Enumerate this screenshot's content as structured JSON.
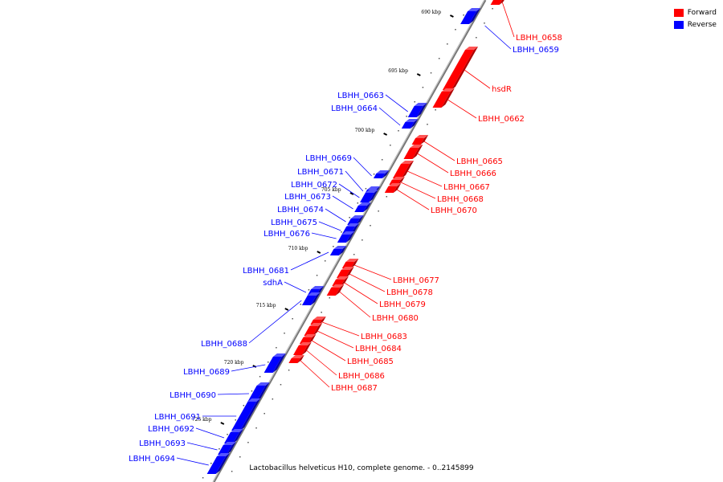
{
  "legend": [
    {
      "label": "Forward",
      "color": "#ff0000"
    },
    {
      "label": "Reverse",
      "color": "#0000ff"
    }
  ],
  "caption": "Lactobacillus helveticus H10, complete genome. - 0..2145899",
  "ticks": [
    "690 kbp",
    "695 kbp",
    "700 kbp",
    "705 kbp",
    "710 kbp",
    "715 kbp",
    "720 kbp",
    "725 kbp"
  ],
  "forward_genes": [
    "LBHH_0658",
    "hsdR",
    "LBHH_0662",
    "LBHH_0665",
    "LBHH_0666",
    "LBHH_0667",
    "LBHH_0668",
    "LBHH_0670",
    "LBHH_0677",
    "LBHH_0678",
    "LBHH_0679",
    "LBHH_0680",
    "LBHH_0683",
    "LBHH_0684",
    "LBHH_0685",
    "LBHH_0686",
    "LBHH_0687"
  ],
  "reverse_genes": [
    "LBHH_0659",
    "LBHH_0663",
    "LBHH_0664",
    "LBHH_0669",
    "LBHH_0671",
    "LBHH_0672",
    "LBHH_0673",
    "LBHH_0674",
    "LBHH_0675",
    "LBHH_0676",
    "LBHH_0681",
    "sdhA",
    "LBHH_0688",
    "LBHH_0689",
    "LBHH_0690",
    "LBHH_0691",
    "LBHH_0692",
    "LBHH_0693",
    "LBHH_0694"
  ],
  "colors": {
    "forward": "#ff0000",
    "reverse": "#0000ff",
    "axis": "#777777"
  }
}
